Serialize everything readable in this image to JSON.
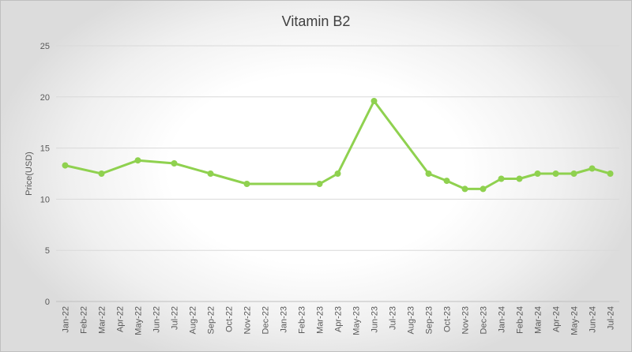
{
  "chart_data": {
    "type": "line",
    "title": "Vitamin B2",
    "xlabel": "",
    "ylabel": "Price(USD)",
    "ylim": [
      0,
      25
    ],
    "yticks": [
      0,
      5,
      10,
      15,
      20,
      25
    ],
    "grid": true,
    "categories": [
      "Jan-22",
      "Feb-22",
      "Mar-22",
      "Apr-22",
      "May-22",
      "Jun-22",
      "Jul-22",
      "Aug-22",
      "Sep-22",
      "Oct-22",
      "Nov-22",
      "Dec-22",
      "Jan-23",
      "Feb-23",
      "Mar-23",
      "Apr-23",
      "May-23",
      "Jun-23",
      "Jul-23",
      "Aug-23",
      "Sep-23",
      "Oct-23",
      "Nov-23",
      "Dec-23",
      "Jan-24",
      "Feb-24",
      "Mar-24",
      "Apr-24",
      "May-24",
      "Jun-24",
      "Jul-24"
    ],
    "series": [
      {
        "name": "Vitamin B2",
        "color": "#8fd14f",
        "points": [
          {
            "x": "Jan-22",
            "y": 13.3
          },
          {
            "x": "Mar-22",
            "y": 12.5
          },
          {
            "x": "May-22",
            "y": 13.8
          },
          {
            "x": "Jul-22",
            "y": 13.5
          },
          {
            "x": "Sep-22",
            "y": 12.5
          },
          {
            "x": "Nov-22",
            "y": 11.5
          },
          {
            "x": "Mar-23",
            "y": 11.5
          },
          {
            "x": "Apr-23",
            "y": 12.5
          },
          {
            "x": "Jun-23",
            "y": 19.6
          },
          {
            "x": "Sep-23",
            "y": 12.5
          },
          {
            "x": "Oct-23",
            "y": 11.8
          },
          {
            "x": "Nov-23",
            "y": 11.0
          },
          {
            "x": "Dec-23",
            "y": 11.0
          },
          {
            "x": "Jan-24",
            "y": 12.0
          },
          {
            "x": "Feb-24",
            "y": 12.0
          },
          {
            "x": "Mar-24",
            "y": 12.5
          },
          {
            "x": "Apr-24",
            "y": 12.5
          },
          {
            "x": "May-24",
            "y": 12.5
          },
          {
            "x": "Jun-24",
            "y": 13.0
          },
          {
            "x": "Jul-24",
            "y": 12.5
          }
        ]
      }
    ]
  }
}
